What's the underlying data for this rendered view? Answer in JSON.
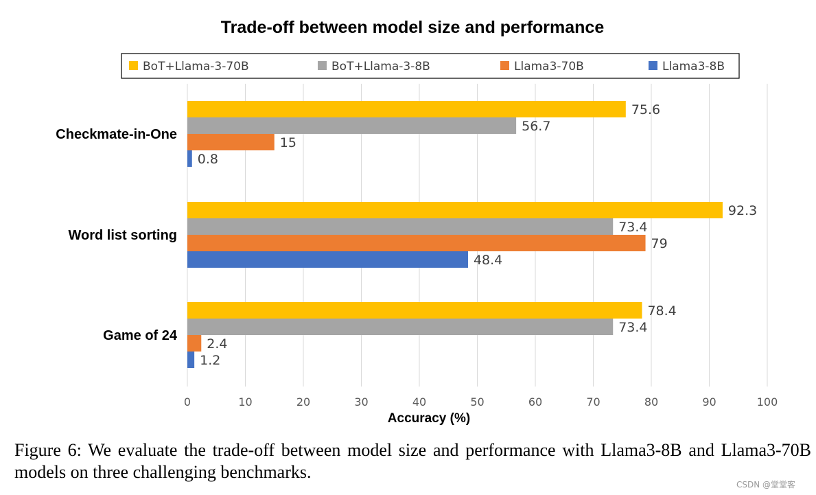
{
  "chart_data": {
    "type": "bar",
    "orientation": "horizontal",
    "title": "Trade-off between model size and performance",
    "xlabel": "Accuracy (%)",
    "ylabel": "",
    "xlim": [
      0,
      100
    ],
    "xticks": [
      0,
      10,
      20,
      30,
      40,
      50,
      60,
      70,
      80,
      90,
      100
    ],
    "grid": true,
    "legend_position": "top",
    "categories": [
      "Checkmate-in-One",
      "Word list sorting",
      "Game of 24"
    ],
    "series": [
      {
        "name": "BoT+Llama-3-70B",
        "color": "#FFC000",
        "values": [
          75.6,
          92.3,
          78.4
        ],
        "labels": [
          "75.6",
          "92.3",
          "78.4"
        ]
      },
      {
        "name": "BoT+Llama-3-8B",
        "color": "#A5A5A5",
        "values": [
          56.7,
          73.4,
          73.4
        ],
        "labels": [
          "56.7",
          "73.4",
          "73.4"
        ]
      },
      {
        "name": "Llama3-70B",
        "color": "#ED7D31",
        "values": [
          15,
          79,
          2.4
        ],
        "labels": [
          "15",
          "79",
          "2.4"
        ]
      },
      {
        "name": "Llama3-8B",
        "color": "#4472C4",
        "values": [
          0.8,
          48.4,
          1.2
        ],
        "labels": [
          "0.8",
          "48.4",
          "1.2"
        ]
      }
    ]
  },
  "caption": "Figure 6: We evaluate the trade-off between model size and performance with Llama3-8B and Llama3-70B models on three challenging benchmarks.",
  "watermark": "CSDN @堂堂客"
}
